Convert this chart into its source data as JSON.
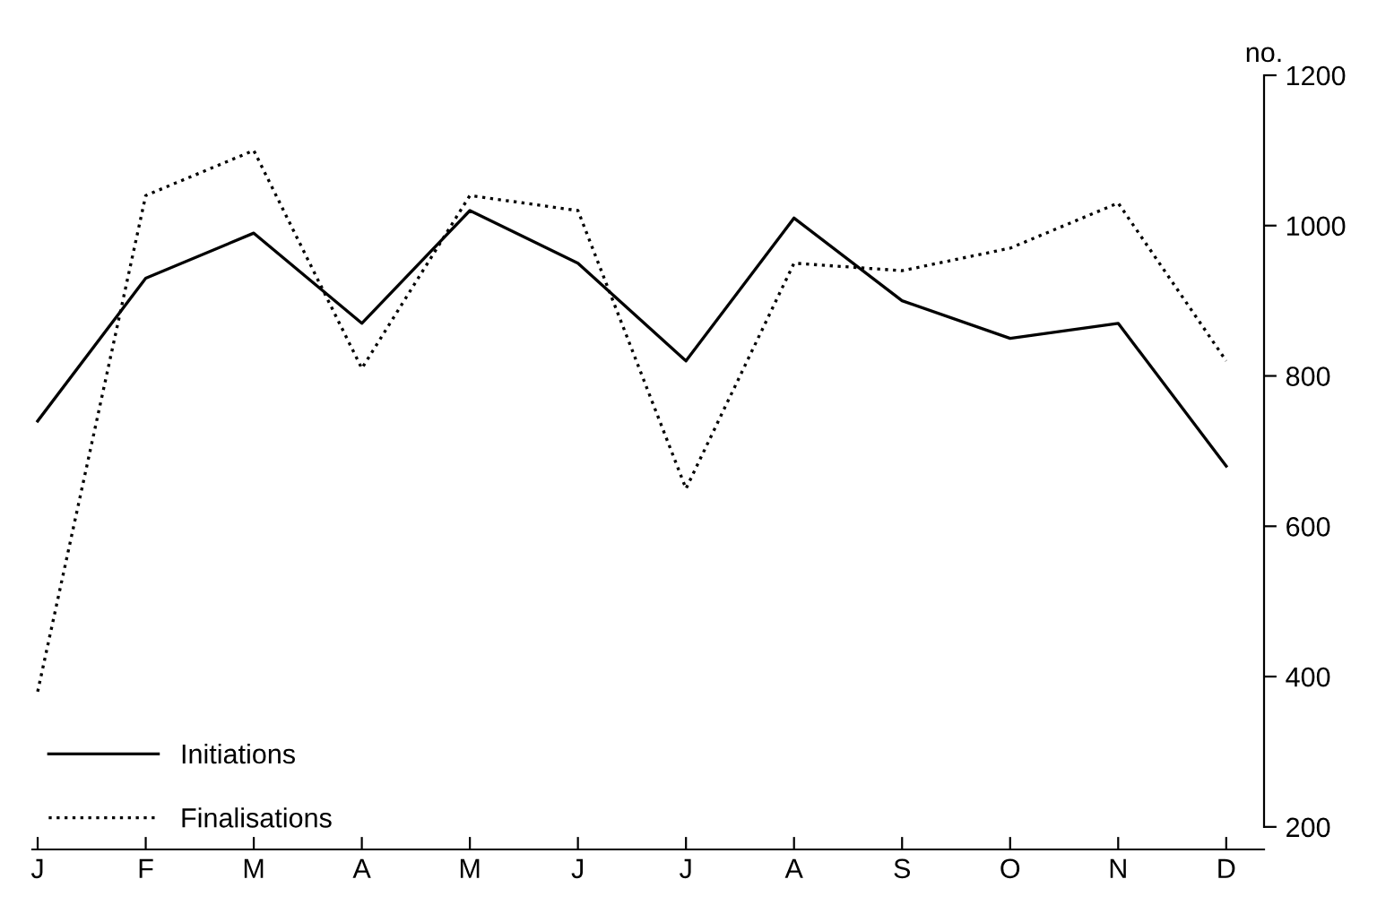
{
  "chart_data": {
    "type": "line",
    "ylabel": "no.",
    "categories": [
      "J",
      "F",
      "M",
      "A",
      "M",
      "J",
      "J",
      "A",
      "S",
      "O",
      "N",
      "D"
    ],
    "series": [
      {
        "name": "Initiations",
        "color": "#000000",
        "line_style": "solid",
        "values": [
          740,
          930,
          990,
          870,
          1020,
          950,
          820,
          1010,
          900,
          850,
          870,
          680
        ]
      },
      {
        "name": "Finalisations",
        "color": "#000000",
        "line_style": "dotted",
        "values": [
          380,
          1040,
          1100,
          810,
          1040,
          1020,
          650,
          950,
          940,
          970,
          1030,
          820
        ]
      }
    ],
    "ylim": [
      170,
      1200
    ],
    "yticks": [
      200,
      400,
      600,
      800,
      1000,
      1200
    ],
    "grid": false,
    "legend": "bottom left",
    "marker": "none"
  }
}
